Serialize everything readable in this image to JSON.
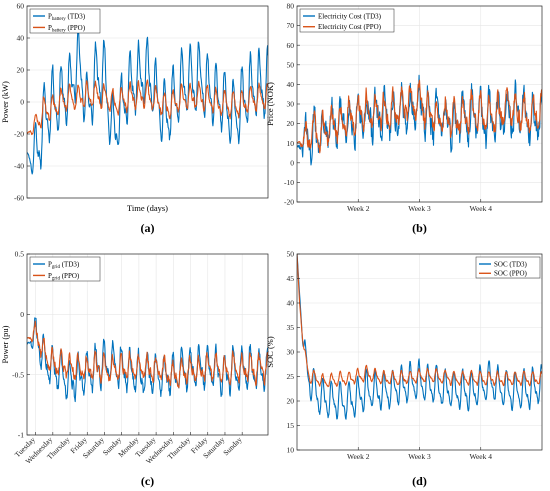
{
  "colors": {
    "td3": "#0072BD",
    "ppo": "#D95319",
    "grid": "#e6e6e6",
    "axis": "#262626"
  },
  "chart_data": [
    {
      "type": "line",
      "panel_label": "(a)",
      "xlabel": "Time (days)",
      "ylabel": "Power (kW)",
      "ylim": [
        -60,
        60
      ],
      "yticks": [
        -60,
        -40,
        -20,
        0,
        20,
        40,
        60
      ],
      "xlim": [
        0,
        28
      ],
      "xtick_labels": [],
      "grid": true,
      "legend_position": "top-left",
      "series": [
        {
          "name": "P",
          "name_sub": "battery",
          "name_suffix": " (TD3)",
          "color": "#0072BD",
          "amplitude": 24,
          "offset": -3,
          "noise": 5,
          "seed": 11,
          "anchors": [
            [
              0,
              -32
            ],
            [
              0.5,
              -36
            ],
            [
              1.5,
              -25
            ],
            [
              2,
              -10
            ],
            [
              3,
              0
            ],
            [
              4,
              2
            ],
            [
              5,
              8
            ],
            [
              6,
              28
            ],
            [
              7,
              -5
            ],
            [
              8,
              15
            ],
            [
              9,
              18
            ],
            [
              10,
              -20
            ],
            [
              12,
              10
            ],
            [
              14,
              18
            ],
            [
              16,
              -10
            ],
            [
              18,
              10
            ],
            [
              20,
              14
            ],
            [
              22,
              5
            ],
            [
              24,
              -10
            ],
            [
              26,
              8
            ],
            [
              28,
              10
            ]
          ]
        },
        {
          "name": "P",
          "name_sub": "battery",
          "name_suffix": " (PPO)",
          "color": "#D95319",
          "amplitude": 9,
          "offset": 0,
          "noise": 3,
          "seed": 23,
          "anchors": [
            [
              0,
              -20
            ],
            [
              1,
              -14
            ],
            [
              2,
              -5
            ],
            [
              3,
              -3
            ],
            [
              4,
              0
            ],
            [
              5,
              3
            ],
            [
              6,
              2
            ],
            [
              8,
              5
            ],
            [
              10,
              0
            ],
            [
              12,
              3
            ],
            [
              14,
              5
            ],
            [
              16,
              -3
            ],
            [
              18,
              2
            ],
            [
              20,
              4
            ],
            [
              22,
              0
            ],
            [
              24,
              -3
            ],
            [
              26,
              2
            ],
            [
              28,
              3
            ]
          ]
        }
      ]
    },
    {
      "type": "line",
      "panel_label": "(b)",
      "xlabel": "",
      "ylabel": "Price (NOK)",
      "ylim": [
        -20,
        80
      ],
      "yticks": [
        -20,
        -10,
        0,
        10,
        20,
        30,
        40,
        50,
        60,
        70,
        80
      ],
      "xlim": [
        0,
        28
      ],
      "xtick_labels": [
        {
          "x": 7,
          "label": "Week 2"
        },
        {
          "x": 14,
          "label": "Week 3"
        },
        {
          "x": 21,
          "label": "Week 4"
        }
      ],
      "grid": true,
      "legend_position": "top-left",
      "series": [
        {
          "name": "Electricity Cost (TD3)",
          "color": "#0072BD",
          "amplitude": 12,
          "offset": 0,
          "noise": 10,
          "seed": 31,
          "anchors": [
            [
              0,
              8
            ],
            [
              2,
              14
            ],
            [
              4,
              18
            ],
            [
              6,
              22
            ],
            [
              8,
              25
            ],
            [
              10,
              22
            ],
            [
              12,
              26
            ],
            [
              14,
              30
            ],
            [
              15,
              24
            ],
            [
              16,
              22
            ],
            [
              18,
              20
            ],
            [
              20,
              24
            ],
            [
              22,
              22
            ],
            [
              24,
              26
            ],
            [
              26,
              24
            ],
            [
              28,
              24
            ]
          ]
        },
        {
          "name": "Electricity Cost (PPO)",
          "color": "#D95319",
          "amplitude": 10,
          "offset": 0,
          "noise": 6,
          "seed": 47,
          "anchors": [
            [
              0,
              10
            ],
            [
              2,
              15
            ],
            [
              4,
              18
            ],
            [
              6,
              24
            ],
            [
              8,
              26
            ],
            [
              10,
              25
            ],
            [
              12,
              28
            ],
            [
              14,
              32
            ],
            [
              15,
              26
            ],
            [
              16,
              24
            ],
            [
              18,
              22
            ],
            [
              20,
              26
            ],
            [
              22,
              24
            ],
            [
              24,
              28
            ],
            [
              26,
              25
            ],
            [
              28,
              26
            ]
          ]
        }
      ]
    },
    {
      "type": "line",
      "panel_label": "(c)",
      "xlabel": "",
      "ylabel": "Power (pu)",
      "ylim": [
        -1,
        0.5
      ],
      "yticks": [
        -1,
        -0.5,
        0,
        0.5
      ],
      "xlim": [
        0,
        28
      ],
      "xtick_labels": [
        {
          "x": 1,
          "label": "Tuesday"
        },
        {
          "x": 3,
          "label": "Wednesday"
        },
        {
          "x": 5,
          "label": "Thursday"
        },
        {
          "x": 7,
          "label": "Friday"
        },
        {
          "x": 9,
          "label": "Saturday"
        },
        {
          "x": 11,
          "label": "Sunday"
        },
        {
          "x": 13,
          "label": "Monday"
        },
        {
          "x": 15,
          "label": "Tuesday"
        },
        {
          "x": 17,
          "label": "Wednesday"
        },
        {
          "x": 19,
          "label": "Thursday"
        },
        {
          "x": 21,
          "label": "Friday"
        },
        {
          "x": 23,
          "label": "Saturday"
        },
        {
          "x": 25,
          "label": "Sunday"
        }
      ],
      "grid": true,
      "legend_position": "top-left",
      "series": [
        {
          "name": "P",
          "name_sub": "grid",
          "name_suffix": " (TD3)",
          "color": "#0072BD",
          "amplitude": 0.2,
          "offset": -0.05,
          "noise": 0.07,
          "seed": 53,
          "anchors": [
            [
              0,
              -0.25
            ],
            [
              1,
              -0.15
            ],
            [
              2,
              -0.35
            ],
            [
              3,
              -0.45
            ],
            [
              5,
              -0.55
            ],
            [
              7,
              -0.5
            ],
            [
              9,
              -0.4
            ],
            [
              11,
              -0.45
            ],
            [
              13,
              -0.5
            ],
            [
              15,
              -0.5
            ],
            [
              17,
              -0.5
            ],
            [
              19,
              -0.45
            ],
            [
              21,
              -0.45
            ],
            [
              23,
              -0.5
            ],
            [
              25,
              -0.45
            ],
            [
              28,
              -0.45
            ]
          ]
        },
        {
          "name": "P",
          "name_sub": "grid",
          "name_suffix": " (PPO)",
          "color": "#D95319",
          "amplitude": 0.12,
          "offset": 0,
          "noise": 0.06,
          "seed": 67,
          "anchors": [
            [
              0,
              -0.2
            ],
            [
              1,
              -0.15
            ],
            [
              2,
              -0.3
            ],
            [
              3,
              -0.4
            ],
            [
              5,
              -0.45
            ],
            [
              7,
              -0.45
            ],
            [
              9,
              -0.45
            ],
            [
              11,
              -0.45
            ],
            [
              13,
              -0.45
            ],
            [
              15,
              -0.45
            ],
            [
              17,
              -0.5
            ],
            [
              19,
              -0.45
            ],
            [
              21,
              -0.45
            ],
            [
              23,
              -0.45
            ],
            [
              25,
              -0.45
            ],
            [
              28,
              -0.45
            ]
          ]
        }
      ]
    },
    {
      "type": "line",
      "panel_label": "(d)",
      "xlabel": "",
      "ylabel": "SOC (%)",
      "ylim": [
        10,
        50
      ],
      "yticks": [
        10,
        15,
        20,
        25,
        30,
        35,
        40,
        45,
        50
      ],
      "xlim": [
        0,
        28
      ],
      "xtick_labels": [
        {
          "x": 7,
          "label": "Week 2"
        },
        {
          "x": 14,
          "label": "Week 3"
        },
        {
          "x": 21,
          "label": "Week 4"
        }
      ],
      "grid": true,
      "legend_position": "top-right",
      "series": [
        {
          "name": "SOC (TD3)",
          "color": "#0072BD",
          "amplitude": 4.5,
          "offset": 0,
          "noise": 0.8,
          "seed": 79,
          "anchors": [
            [
              0,
              50
            ],
            [
              0.3,
              42
            ],
            [
              0.8,
              30
            ],
            [
              1.5,
              24
            ],
            [
              2.5,
              21
            ],
            [
              4,
              20
            ],
            [
              6,
              20
            ],
            [
              8,
              22
            ],
            [
              10,
              22
            ],
            [
              12,
              23
            ],
            [
              14,
              24
            ],
            [
              16,
              23
            ],
            [
              18,
              22
            ],
            [
              20,
              22
            ],
            [
              22,
              24
            ],
            [
              24,
              22
            ],
            [
              26,
              22
            ],
            [
              28,
              23
            ]
          ]
        },
        {
          "name": "SOC (PPO)",
          "color": "#D95319",
          "amplitude": 1.6,
          "offset": 0,
          "noise": 0.4,
          "seed": 97,
          "anchors": [
            [
              0,
              50
            ],
            [
              0.3,
              40
            ],
            [
              0.8,
              30
            ],
            [
              1.5,
              25
            ],
            [
              3,
              24
            ],
            [
              6,
              24.5
            ],
            [
              8,
              25.5
            ],
            [
              10,
              24.5
            ],
            [
              12,
              24.5
            ],
            [
              14,
              25
            ],
            [
              16,
              25
            ],
            [
              18,
              24.5
            ],
            [
              20,
              24.5
            ],
            [
              22,
              24.5
            ],
            [
              24,
              24.5
            ],
            [
              26,
              24.5
            ],
            [
              28,
              24.5
            ]
          ]
        }
      ]
    }
  ]
}
